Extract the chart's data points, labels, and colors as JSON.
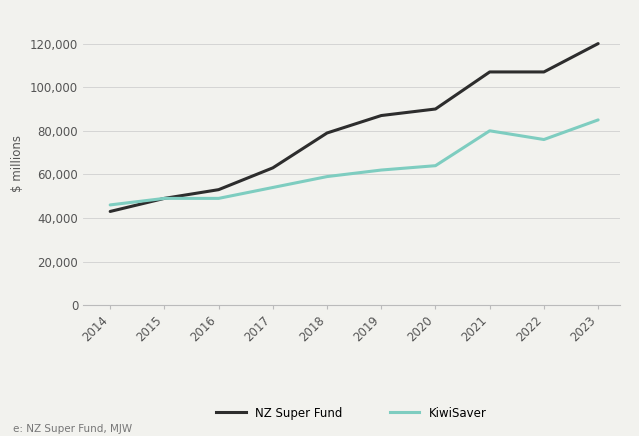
{
  "years": [
    2014,
    2015,
    2016,
    2017,
    2018,
    2019,
    2020,
    2021,
    2022,
    2023
  ],
  "nz_super_fund": [
    43000,
    49000,
    53000,
    63000,
    79000,
    87000,
    90000,
    107000,
    107000,
    120000
  ],
  "kiwisaver": [
    46000,
    49000,
    49000,
    54000,
    59000,
    62000,
    64000,
    80000,
    76000,
    85000
  ],
  "nz_super_color": "#2d2d2d",
  "kiwisaver_color": "#7ecdc0",
  "background_color": "#f2f2ee",
  "ylabel": "$ millions",
  "ylim": [
    0,
    130000
  ],
  "yticks": [
    0,
    20000,
    40000,
    60000,
    80000,
    100000,
    120000
  ],
  "source_text": "e: NZ Super Fund, MJW",
  "legend_nz": "NZ Super Fund",
  "legend_kiwi": "KiwiSaver",
  "line_width": 2.2
}
